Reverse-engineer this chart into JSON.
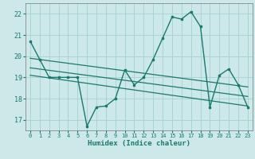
{
  "xlabel": "Humidex (Indice chaleur)",
  "bg_color": "#cce8e8",
  "grid_color": "#aad4d4",
  "line_color": "#1a7a6e",
  "xlim": [
    -0.5,
    23.5
  ],
  "ylim": [
    16.5,
    22.5
  ],
  "yticks": [
    17,
    18,
    19,
    20,
    21,
    22
  ],
  "xticks": [
    0,
    1,
    2,
    3,
    4,
    5,
    6,
    7,
    8,
    9,
    10,
    11,
    12,
    13,
    14,
    15,
    16,
    17,
    18,
    19,
    20,
    21,
    22,
    23
  ],
  "main_x": [
    0,
    1,
    2,
    3,
    4,
    5,
    6,
    7,
    8,
    9,
    10,
    11,
    12,
    13,
    14,
    15,
    16,
    17,
    18,
    19,
    20,
    21,
    22,
    23
  ],
  "main_y": [
    20.7,
    19.85,
    19.0,
    19.0,
    19.0,
    19.0,
    16.7,
    17.6,
    17.65,
    18.0,
    19.35,
    18.65,
    19.0,
    19.85,
    20.85,
    21.85,
    21.75,
    22.1,
    21.4,
    17.6,
    19.1,
    19.4,
    18.65,
    17.6
  ],
  "trend1_x": [
    0,
    23
  ],
  "trend1_y": [
    19.9,
    18.55
  ],
  "trend2_x": [
    0,
    23
  ],
  "trend2_y": [
    19.45,
    18.1
  ],
  "trend3_x": [
    0,
    23
  ],
  "trend3_y": [
    19.1,
    17.65
  ]
}
